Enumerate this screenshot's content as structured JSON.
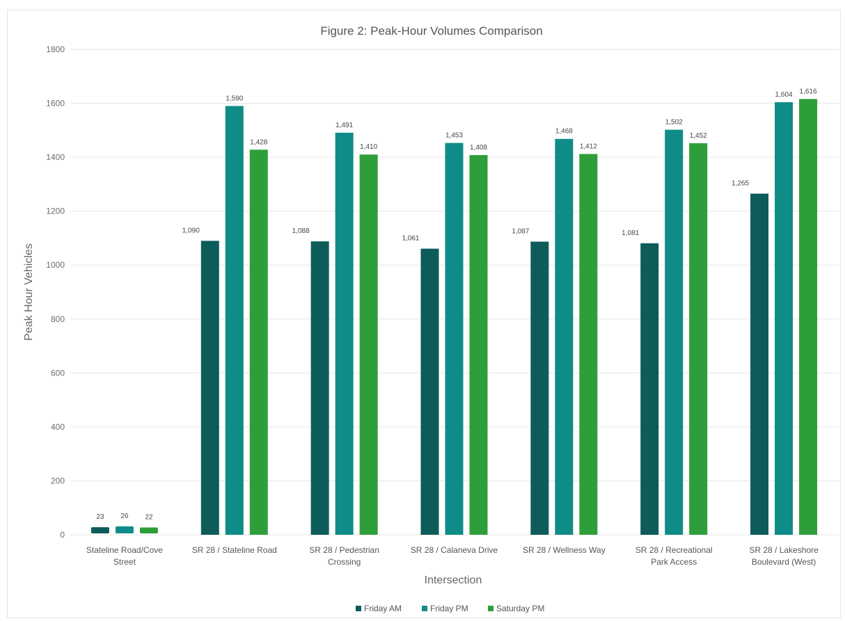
{
  "chart_data": {
    "type": "bar",
    "title": "Figure 2:  Peak-Hour Volumes Comparison",
    "xlabel": "Intersection",
    "ylabel": "Peak Hour Vehicles",
    "ylim": [
      0,
      1800
    ],
    "yticks": [
      "0",
      "200",
      "400",
      "600",
      "800",
      "1000",
      "1200",
      "1400",
      "1600",
      "1800"
    ],
    "grid": true,
    "legend_position": "bottom",
    "categories": [
      [
        "Stateline Road/Cove",
        "Street"
      ],
      [
        "SR 28 / Stateline Road"
      ],
      [
        "SR 28 / Pedestrian",
        "Crossing"
      ],
      [
        "SR 28 / Calaneva Drive"
      ],
      [
        "SR 28 / Wellness Way"
      ],
      [
        "SR 28 / Recreational",
        "Park Access"
      ],
      [
        "SR 28 / Lakeshore",
        "Boulevard (West)"
      ]
    ],
    "series": [
      {
        "name": "Friday AM",
        "color": "#0d5c5a",
        "values": [
          23,
          1090,
          1088,
          1061,
          1087,
          1081,
          1265
        ],
        "labels": [
          "23",
          "1,090",
          "1,088",
          "1,061",
          "1,087",
          "1,081",
          "1,265"
        ]
      },
      {
        "name": "Friday PM",
        "color": "#0f8c87",
        "values": [
          26,
          1590,
          1491,
          1453,
          1468,
          1502,
          1604
        ],
        "labels": [
          "26",
          "1,590",
          "1,491",
          "1,453",
          "1,468",
          "1,502",
          "1,604"
        ]
      },
      {
        "name": "Saturday PM",
        "color": "#2e9e3a",
        "values": [
          22,
          1428,
          1410,
          1408,
          1412,
          1452,
          1616
        ],
        "labels": [
          "22",
          "1,428",
          "1,410",
          "1,408",
          "1,412",
          "1,452",
          "1,616"
        ]
      }
    ]
  }
}
